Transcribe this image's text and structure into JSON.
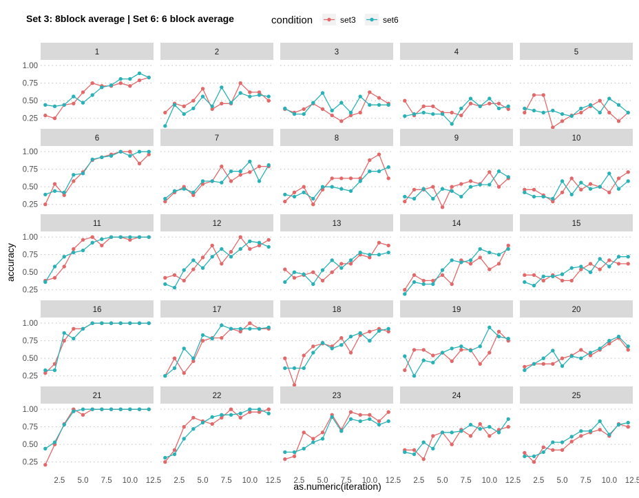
{
  "chart_data": {
    "type": "line",
    "title": "Set 3: 8block average | Set 6: 6 block average",
    "xlabel": "as.numeric(iteration)",
    "ylabel": "accuracy",
    "xlim": [
      0.5,
      12.5
    ],
    "ylim": [
      0.1,
      1.08
    ],
    "x_ticks": [
      2.5,
      5.0,
      7.5,
      10.0,
      12.5
    ],
    "x_tick_labels": [
      "2.5",
      "5.0",
      "7.5",
      "10.0",
      "12.5"
    ],
    "y_ticks": [
      0.25,
      0.5,
      0.75,
      1.0
    ],
    "y_tick_labels": [
      "0.25",
      "0.50",
      "0.75",
      "1.00"
    ],
    "x": [
      1,
      2,
      3,
      4,
      5,
      6,
      7,
      8,
      9,
      10,
      11,
      12
    ],
    "legend": {
      "title": "condition",
      "position": "top",
      "entries": [
        {
          "name": "set3",
          "color": "#E2696A"
        },
        {
          "name": "set6",
          "color": "#2AB1B8"
        }
      ]
    },
    "grid": "major-y-dotted",
    "panels": [
      {
        "label": "1",
        "set3": [
          0.29,
          0.25,
          0.44,
          0.46,
          0.62,
          0.75,
          0.71,
          0.71,
          0.75,
          0.71,
          0.79,
          0.83
        ],
        "set6": [
          0.44,
          0.42,
          0.44,
          0.56,
          0.47,
          0.58,
          0.69,
          0.72,
          0.81,
          0.81,
          0.89,
          0.83
        ]
      },
      {
        "label": "2",
        "set3": [
          0.33,
          0.46,
          0.42,
          0.5,
          0.67,
          0.38,
          0.46,
          0.46,
          0.75,
          0.62,
          0.62,
          0.5
        ],
        "set6": [
          0.14,
          0.44,
          0.31,
          0.39,
          0.56,
          0.42,
          0.69,
          0.47,
          0.61,
          0.56,
          0.58,
          0.56
        ]
      },
      {
        "label": "3",
        "set3": [
          0.38,
          0.33,
          0.38,
          0.46,
          0.38,
          0.29,
          0.21,
          0.29,
          0.33,
          0.62,
          0.54,
          0.46
        ],
        "set6": [
          0.39,
          0.31,
          0.31,
          0.47,
          0.61,
          0.36,
          0.47,
          0.33,
          0.56,
          0.44,
          0.44,
          0.44
        ]
      },
      {
        "label": "4",
        "set3": [
          0.5,
          0.29,
          0.42,
          0.42,
          0.33,
          0.33,
          0.29,
          0.46,
          0.42,
          0.46,
          0.46,
          0.38
        ],
        "set6": [
          0.28,
          0.31,
          0.33,
          0.31,
          0.31,
          0.17,
          0.39,
          0.53,
          0.42,
          0.53,
          0.39,
          0.42
        ]
      },
      {
        "label": "5",
        "set3": [
          0.33,
          0.58,
          0.58,
          0.12,
          0.21,
          0.29,
          0.33,
          0.42,
          0.5,
          0.33,
          0.21,
          0.33
        ],
        "set6": [
          0.39,
          0.36,
          0.33,
          0.36,
          0.31,
          0.28,
          0.39,
          0.44,
          0.33,
          0.53,
          0.44,
          0.33
        ]
      },
      {
        "label": "6",
        "set3": [
          0.25,
          0.54,
          0.38,
          0.58,
          0.71,
          0.88,
          0.92,
          0.96,
          1.0,
          1.0,
          0.83,
          0.96
        ],
        "set6": [
          0.39,
          0.44,
          0.42,
          0.67,
          0.69,
          0.89,
          0.92,
          0.94,
          1.0,
          0.94,
          1.0,
          1.0
        ]
      },
      {
        "label": "7",
        "set3": [
          0.29,
          0.42,
          0.5,
          0.38,
          0.54,
          0.58,
          0.79,
          0.58,
          0.67,
          0.71,
          0.79,
          0.79
        ],
        "set6": [
          0.33,
          0.44,
          0.47,
          0.42,
          0.58,
          0.58,
          0.56,
          0.72,
          0.72,
          0.86,
          0.58,
          0.81
        ]
      },
      {
        "label": "8",
        "set3": [
          0.29,
          0.42,
          0.5,
          0.25,
          0.46,
          0.62,
          0.62,
          0.62,
          0.62,
          0.88,
          0.96,
          0.62
        ],
        "set6": [
          0.39,
          0.36,
          0.42,
          0.33,
          0.5,
          0.5,
          0.47,
          0.44,
          0.58,
          0.72,
          0.72,
          0.78
        ]
      },
      {
        "label": "9",
        "set3": [
          0.29,
          0.46,
          0.46,
          0.5,
          0.21,
          0.5,
          0.54,
          0.58,
          0.54,
          0.71,
          0.5,
          0.62
        ],
        "set6": [
          0.36,
          0.33,
          0.47,
          0.33,
          0.47,
          0.44,
          0.36,
          0.5,
          0.53,
          0.53,
          0.72,
          0.64
        ]
      },
      {
        "label": "10",
        "set3": [
          0.46,
          0.46,
          0.38,
          0.29,
          0.42,
          0.62,
          0.46,
          0.54,
          0.5,
          0.42,
          0.62,
          0.71
        ],
        "set6": [
          0.42,
          0.36,
          0.36,
          0.33,
          0.58,
          0.39,
          0.56,
          0.47,
          0.5,
          0.69,
          0.47,
          0.58
        ]
      },
      {
        "label": "11",
        "set3": [
          0.38,
          0.42,
          0.58,
          0.83,
          0.96,
          1.0,
          0.88,
          1.0,
          1.0,
          0.96,
          1.0,
          1.0
        ],
        "set6": [
          0.36,
          0.58,
          0.72,
          0.78,
          0.81,
          0.92,
          0.97,
          1.0,
          1.0,
          1.0,
          1.0,
          1.0
        ]
      },
      {
        "label": "12",
        "set3": [
          0.42,
          0.46,
          0.38,
          0.54,
          0.71,
          0.88,
          0.62,
          0.79,
          1.0,
          0.83,
          0.88,
          0.96
        ],
        "set6": [
          0.33,
          0.28,
          0.53,
          0.67,
          0.56,
          0.72,
          0.83,
          0.72,
          0.83,
          0.94,
          0.92,
          0.86
        ]
      },
      {
        "label": "13",
        "set3": [
          0.54,
          0.42,
          0.46,
          0.5,
          0.38,
          0.5,
          0.62,
          0.62,
          0.75,
          0.71,
          0.92,
          0.88
        ],
        "set6": [
          0.36,
          0.5,
          0.47,
          0.33,
          0.53,
          0.67,
          0.56,
          0.67,
          0.78,
          0.75,
          0.75,
          0.78
        ]
      },
      {
        "label": "14",
        "set3": [
          0.25,
          0.46,
          0.38,
          0.38,
          0.46,
          0.33,
          0.67,
          0.62,
          0.71,
          0.54,
          0.62,
          0.88
        ],
        "set6": [
          0.19,
          0.36,
          0.33,
          0.33,
          0.53,
          0.67,
          0.64,
          0.67,
          0.83,
          0.78,
          0.75,
          0.83
        ]
      },
      {
        "label": "15",
        "set3": [
          0.46,
          0.46,
          0.38,
          0.46,
          0.38,
          0.38,
          0.54,
          0.62,
          0.54,
          0.67,
          0.62,
          0.62
        ],
        "set6": [
          0.36,
          0.31,
          0.44,
          0.44,
          0.47,
          0.56,
          0.58,
          0.5,
          0.69,
          0.58,
          0.72,
          0.72
        ]
      },
      {
        "label": "16",
        "set3": [
          0.29,
          0.42,
          0.75,
          0.92,
          0.92,
          1.0,
          1.0,
          1.0,
          1.0,
          1.0,
          1.0,
          1.0
        ],
        "set6": [
          0.33,
          0.33,
          0.86,
          0.78,
          0.92,
          1.0,
          1.0,
          1.0,
          1.0,
          1.0,
          1.0,
          1.0
        ]
      },
      {
        "label": "17",
        "set3": [
          0.25,
          0.5,
          0.29,
          0.46,
          0.75,
          0.79,
          0.79,
          0.92,
          0.88,
          1.0,
          0.92,
          0.92
        ],
        "set6": [
          0.25,
          0.36,
          0.64,
          0.5,
          0.83,
          0.78,
          0.97,
          0.92,
          0.92,
          0.92,
          0.92,
          0.94
        ]
      },
      {
        "label": "18",
        "set3": [
          0.5,
          0.12,
          0.54,
          0.67,
          0.71,
          0.67,
          0.79,
          0.58,
          0.83,
          0.88,
          0.92,
          0.88
        ],
        "set6": [
          0.36,
          0.36,
          0.36,
          0.58,
          0.72,
          0.64,
          0.69,
          0.81,
          0.86,
          0.75,
          0.89,
          0.92
        ]
      },
      {
        "label": "19",
        "set3": [
          0.33,
          0.62,
          0.62,
          0.54,
          0.58,
          0.46,
          0.62,
          0.62,
          0.42,
          0.58,
          0.88,
          0.75
        ],
        "set6": [
          0.53,
          0.25,
          0.47,
          0.44,
          0.58,
          0.64,
          0.67,
          0.61,
          0.67,
          0.94,
          0.81,
          0.78
        ]
      },
      {
        "label": "20",
        "set3": [
          0.38,
          0.42,
          0.42,
          0.42,
          0.5,
          0.54,
          0.62,
          0.54,
          0.62,
          0.71,
          0.79,
          0.62
        ],
        "set6": [
          0.33,
          0.42,
          0.5,
          0.61,
          0.39,
          0.53,
          0.5,
          0.58,
          0.64,
          0.75,
          0.81,
          0.67
        ]
      },
      {
        "label": "21",
        "set3": [
          0.21,
          0.5,
          0.79,
          1.0,
          0.92,
          1.0,
          1.0,
          1.0,
          1.0,
          1.0,
          1.0,
          1.0
        ],
        "set6": [
          0.44,
          0.53,
          0.78,
          0.97,
          1.0,
          1.0,
          1.0,
          1.0,
          1.0,
          1.0,
          1.0,
          1.0
        ]
      },
      {
        "label": "22",
        "set3": [
          0.25,
          0.42,
          0.75,
          0.88,
          0.83,
          0.79,
          0.88,
          1.0,
          0.88,
          0.96,
          0.96,
          1.0
        ],
        "set6": [
          0.31,
          0.36,
          0.58,
          0.72,
          0.81,
          0.89,
          0.92,
          0.92,
          0.94,
          1.0,
          1.0,
          0.94
        ]
      },
      {
        "label": "23",
        "set3": [
          0.29,
          0.33,
          0.67,
          0.58,
          0.67,
          0.92,
          0.71,
          0.96,
          0.92,
          0.92,
          0.83,
          0.96
        ],
        "set6": [
          0.39,
          0.39,
          0.44,
          0.53,
          0.58,
          0.89,
          0.69,
          0.86,
          0.83,
          0.86,
          0.78,
          0.83
        ]
      },
      {
        "label": "24",
        "set3": [
          0.42,
          0.42,
          0.29,
          0.62,
          0.67,
          0.5,
          0.71,
          0.62,
          0.79,
          0.62,
          0.71,
          0.75
        ],
        "set6": [
          0.39,
          0.36,
          0.53,
          0.44,
          0.67,
          0.67,
          0.69,
          0.78,
          0.72,
          0.75,
          0.67,
          0.86
        ]
      },
      {
        "label": "25",
        "set3": [
          0.38,
          0.25,
          0.46,
          0.42,
          0.42,
          0.54,
          0.62,
          0.67,
          0.71,
          0.62,
          0.79,
          0.75
        ],
        "set6": [
          0.33,
          0.33,
          0.39,
          0.53,
          0.53,
          0.61,
          0.69,
          0.69,
          0.83,
          0.64,
          0.78,
          0.81
        ]
      }
    ]
  }
}
